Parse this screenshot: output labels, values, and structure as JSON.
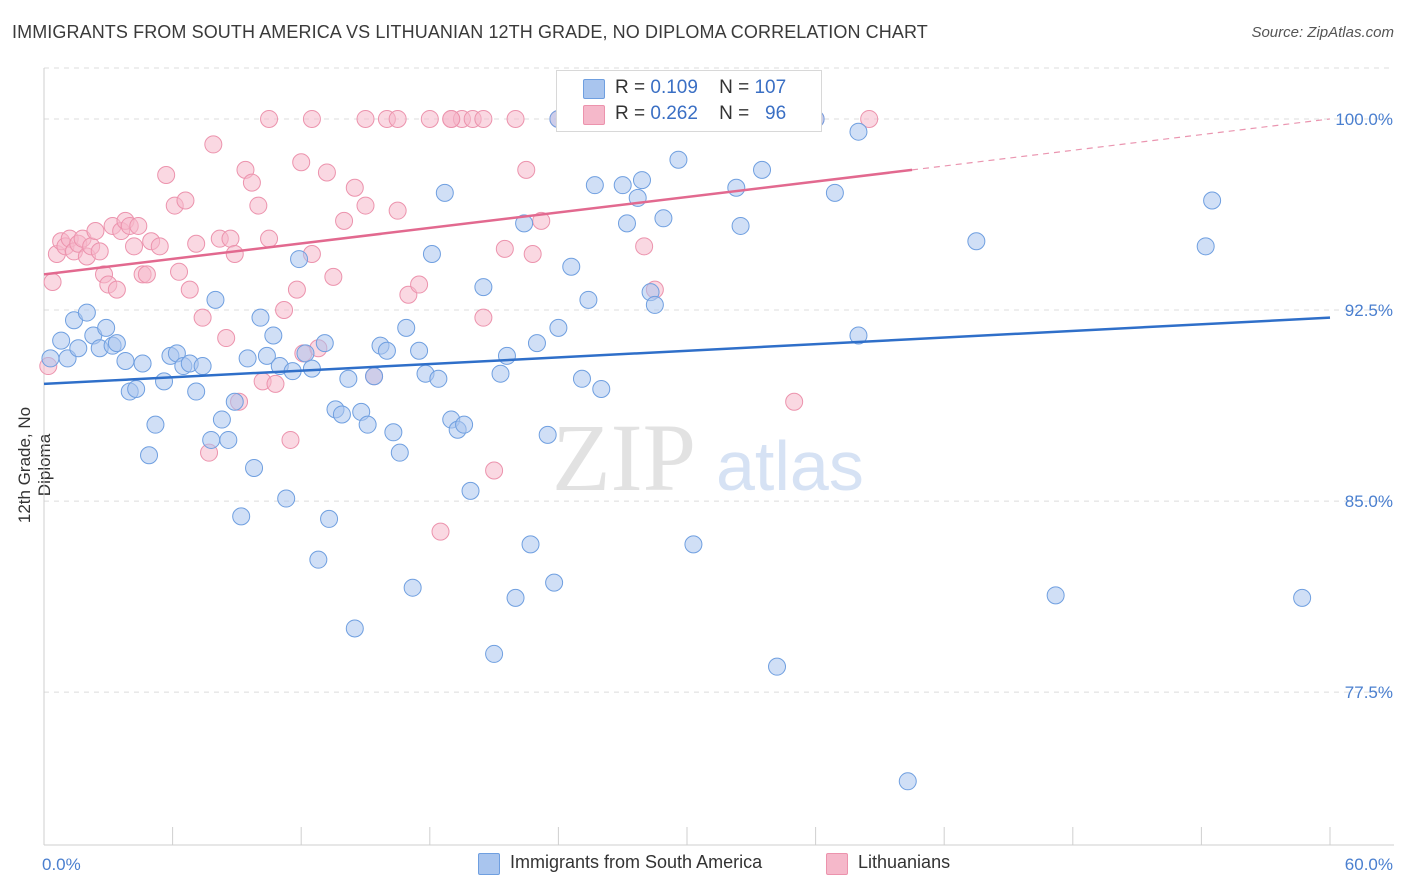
{
  "title": "IMMIGRANTS FROM SOUTH AMERICA VS LITHUANIAN 12TH GRADE, NO DIPLOMA CORRELATION CHART",
  "source": "Source: ZipAtlas.com",
  "watermark": {
    "zip": "ZIP",
    "atlas": "atlas"
  },
  "colors": {
    "blue_fill": "#a9c5ee",
    "blue_stroke": "#6f9fe0",
    "blue_line": "#2f6fc9",
    "pink_fill": "#f5b8ca",
    "pink_stroke": "#ec93ad",
    "pink_line": "#e2698f",
    "grid": "#dcdcdc",
    "tick_text": "#4a7fcf"
  },
  "legend": {
    "rows": [
      {
        "r_label": "R =",
        "r_value": "0.109",
        "n_label": "N =",
        "n_value": "107"
      },
      {
        "r_label": "R =",
        "r_value": "0.262",
        "n_label": "N =",
        "n_value": "96"
      }
    ]
  },
  "bottom_legend": [
    "Immigrants from South America",
    "Lithuanians"
  ],
  "chart_data": {
    "type": "scatter",
    "title": "IMMIGRANTS FROM SOUTH AMERICA VS LITHUANIAN 12TH GRADE, NO DIPLOMA CORRELATION CHART",
    "xlabel": "",
    "ylabel": "12th Grade, No Diploma",
    "xlim": [
      0,
      60
    ],
    "ylim": [
      71.5,
      102
    ],
    "x_tick_labels": [
      "0.0%",
      "60.0%"
    ],
    "y_ticks": [
      77.5,
      85.0,
      92.5,
      100.0
    ],
    "y_tick_labels": [
      "77.5%",
      "85.0%",
      "92.5%",
      "100.0%"
    ],
    "grid": "horizontal dashed",
    "series": [
      {
        "name": "Immigrants from South America",
        "color": "#a9c5ee",
        "trend": {
          "x": [
            0,
            60
          ],
          "y": [
            89.6,
            92.2
          ]
        },
        "points": [
          [
            0.3,
            90.6
          ],
          [
            0.8,
            91.3
          ],
          [
            1.1,
            90.6
          ],
          [
            1.4,
            92.1
          ],
          [
            2.0,
            92.4
          ],
          [
            1.6,
            91.0
          ],
          [
            2.3,
            91.5
          ],
          [
            2.6,
            91.0
          ],
          [
            2.9,
            91.8
          ],
          [
            3.2,
            91.1
          ],
          [
            3.4,
            91.2
          ],
          [
            3.8,
            90.5
          ],
          [
            4.0,
            89.3
          ],
          [
            4.3,
            89.4
          ],
          [
            4.6,
            90.4
          ],
          [
            4.9,
            86.8
          ],
          [
            5.2,
            88.0
          ],
          [
            5.6,
            89.7
          ],
          [
            5.9,
            90.7
          ],
          [
            6.2,
            90.8
          ],
          [
            6.5,
            90.3
          ],
          [
            6.8,
            90.4
          ],
          [
            7.1,
            89.3
          ],
          [
            7.4,
            90.3
          ],
          [
            7.8,
            87.4
          ],
          [
            8.0,
            92.9
          ],
          [
            8.3,
            88.2
          ],
          [
            8.6,
            87.4
          ],
          [
            8.9,
            88.9
          ],
          [
            9.2,
            84.4
          ],
          [
            9.5,
            90.6
          ],
          [
            9.8,
            86.3
          ],
          [
            10.1,
            92.2
          ],
          [
            10.4,
            90.7
          ],
          [
            10.7,
            91.5
          ],
          [
            11.0,
            90.3
          ],
          [
            11.3,
            85.1
          ],
          [
            11.6,
            90.1
          ],
          [
            11.9,
            94.5
          ],
          [
            12.2,
            90.8
          ],
          [
            12.5,
            90.2
          ],
          [
            12.8,
            82.7
          ],
          [
            13.1,
            91.2
          ],
          [
            13.3,
            84.3
          ],
          [
            13.6,
            88.6
          ],
          [
            13.9,
            88.4
          ],
          [
            14.2,
            89.8
          ],
          [
            14.5,
            80.0
          ],
          [
            14.8,
            88.5
          ],
          [
            15.1,
            88.0
          ],
          [
            15.4,
            89.9
          ],
          [
            15.7,
            91.1
          ],
          [
            16.0,
            90.9
          ],
          [
            16.3,
            87.7
          ],
          [
            16.6,
            86.9
          ],
          [
            16.9,
            91.8
          ],
          [
            17.2,
            81.6
          ],
          [
            17.5,
            90.9
          ],
          [
            17.8,
            90.0
          ],
          [
            18.1,
            94.7
          ],
          [
            18.4,
            89.8
          ],
          [
            18.7,
            97.1
          ],
          [
            19.0,
            88.2
          ],
          [
            19.3,
            87.8
          ],
          [
            19.6,
            88.0
          ],
          [
            19.9,
            85.4
          ],
          [
            20.5,
            93.4
          ],
          [
            21.0,
            79.0
          ],
          [
            21.3,
            90.0
          ],
          [
            21.6,
            90.7
          ],
          [
            22.0,
            81.2
          ],
          [
            22.4,
            95.9
          ],
          [
            22.7,
            83.3
          ],
          [
            23.0,
            91.2
          ],
          [
            23.5,
            87.6
          ],
          [
            23.8,
            81.8
          ],
          [
            24.0,
            91.8
          ],
          [
            24.6,
            94.2
          ],
          [
            25.1,
            89.8
          ],
          [
            25.4,
            92.9
          ],
          [
            25.7,
            97.4
          ],
          [
            26.0,
            89.4
          ],
          [
            27.0,
            97.4
          ],
          [
            27.2,
            95.9
          ],
          [
            27.7,
            96.9
          ],
          [
            27.9,
            97.6
          ],
          [
            28.3,
            93.2
          ],
          [
            28.5,
            92.7
          ],
          [
            28.9,
            96.1
          ],
          [
            29.6,
            98.4
          ],
          [
            30.3,
            83.3
          ],
          [
            32.3,
            97.3
          ],
          [
            32.5,
            95.8
          ],
          [
            33.5,
            98.0
          ],
          [
            34.2,
            78.5
          ],
          [
            36.9,
            97.1
          ],
          [
            38.0,
            91.5
          ],
          [
            40.3,
            74.0
          ],
          [
            43.5,
            95.2
          ],
          [
            47.2,
            81.3
          ],
          [
            54.2,
            95.0
          ],
          [
            54.5,
            96.8
          ],
          [
            58.7,
            81.2
          ],
          [
            24.0,
            100.0
          ],
          [
            31.0,
            100.0
          ],
          [
            36.0,
            100.0
          ],
          [
            38.0,
            99.5
          ]
        ]
      },
      {
        "name": "Lithuanians",
        "color": "#f5b8ca",
        "trend": {
          "x": [
            0,
            40.5
          ],
          "y": [
            93.9,
            98.0
          ],
          "dashed_to": {
            "x": 60,
            "y": 100.0
          }
        },
        "points": [
          [
            0.2,
            90.3
          ],
          [
            0.4,
            93.6
          ],
          [
            0.6,
            94.7
          ],
          [
            0.8,
            95.2
          ],
          [
            1.0,
            95.0
          ],
          [
            1.2,
            95.3
          ],
          [
            1.4,
            94.8
          ],
          [
            1.6,
            95.1
          ],
          [
            1.8,
            95.3
          ],
          [
            2.0,
            94.6
          ],
          [
            2.2,
            95.0
          ],
          [
            2.4,
            95.6
          ],
          [
            2.6,
            94.8
          ],
          [
            2.8,
            93.9
          ],
          [
            3.0,
            93.5
          ],
          [
            3.2,
            95.8
          ],
          [
            3.4,
            93.3
          ],
          [
            3.6,
            95.6
          ],
          [
            3.8,
            96.0
          ],
          [
            4.0,
            95.8
          ],
          [
            4.2,
            95.0
          ],
          [
            4.4,
            95.8
          ],
          [
            4.6,
            93.9
          ],
          [
            4.8,
            93.9
          ],
          [
            5.0,
            95.2
          ],
          [
            5.4,
            95.0
          ],
          [
            5.7,
            97.8
          ],
          [
            6.1,
            96.6
          ],
          [
            6.3,
            94.0
          ],
          [
            6.6,
            96.8
          ],
          [
            6.8,
            93.3
          ],
          [
            7.1,
            95.1
          ],
          [
            7.4,
            92.2
          ],
          [
            7.7,
            86.9
          ],
          [
            7.9,
            99.0
          ],
          [
            8.2,
            95.3
          ],
          [
            8.5,
            91.4
          ],
          [
            8.7,
            95.3
          ],
          [
            8.9,
            94.7
          ],
          [
            9.1,
            88.9
          ],
          [
            9.4,
            98.0
          ],
          [
            9.7,
            97.5
          ],
          [
            10.0,
            96.6
          ],
          [
            10.2,
            89.7
          ],
          [
            10.5,
            95.3
          ],
          [
            10.8,
            89.6
          ],
          [
            11.2,
            92.5
          ],
          [
            11.5,
            87.4
          ],
          [
            11.8,
            93.3
          ],
          [
            12.1,
            90.8
          ],
          [
            12.5,
            94.7
          ],
          [
            12.8,
            91.0
          ],
          [
            13.2,
            97.9
          ],
          [
            13.5,
            93.8
          ],
          [
            14.0,
            96.0
          ],
          [
            14.5,
            97.3
          ],
          [
            15.0,
            96.6
          ],
          [
            15.4,
            89.9
          ],
          [
            16.0,
            100.0
          ],
          [
            16.5,
            96.4
          ],
          [
            17.0,
            93.1
          ],
          [
            17.5,
            93.5
          ],
          [
            18.0,
            100.0
          ],
          [
            18.5,
            83.8
          ],
          [
            19.0,
            100.0
          ],
          [
            19.5,
            100.0
          ],
          [
            20.0,
            100.0
          ],
          [
            20.5,
            92.2
          ],
          [
            21.0,
            86.2
          ],
          [
            21.5,
            94.9
          ],
          [
            22.0,
            100.0
          ],
          [
            22.5,
            98.0
          ],
          [
            22.8,
            94.7
          ],
          [
            23.2,
            96.0
          ],
          [
            24.0,
            100.0
          ],
          [
            26.0,
            100.0
          ],
          [
            26.5,
            100.0
          ],
          [
            27.5,
            100.0
          ],
          [
            28.0,
            95.0
          ],
          [
            28.5,
            93.3
          ],
          [
            29.5,
            100.0
          ],
          [
            30.0,
            100.0
          ],
          [
            31.0,
            100.0
          ],
          [
            32.0,
            100.0
          ],
          [
            33.0,
            100.0
          ],
          [
            35.0,
            88.9
          ],
          [
            38.5,
            100.0
          ],
          [
            10.5,
            100.0
          ],
          [
            12.0,
            98.3
          ],
          [
            12.5,
            100.0
          ],
          [
            15.0,
            100.0
          ],
          [
            16.5,
            100.0
          ],
          [
            19.0,
            100.0
          ],
          [
            20.5,
            100.0
          ],
          [
            34.0,
            100.0
          ],
          [
            36.0,
            100.0
          ]
        ]
      }
    ]
  }
}
